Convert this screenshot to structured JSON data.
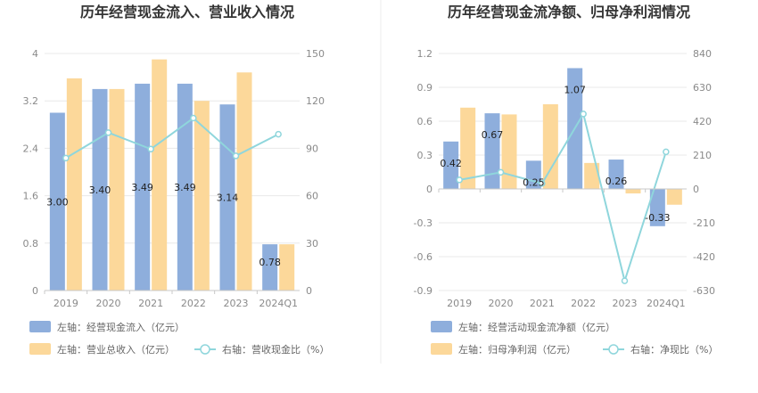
{
  "chart_data": [
    {
      "type": "bar",
      "title": "历年经营现金流入、营业收入情况",
      "categories": [
        "2019",
        "2020",
        "2021",
        "2022",
        "2023",
        "2024Q1"
      ],
      "left_axis": {
        "ticks": [
          "0",
          "0.8",
          "1.6",
          "2.4",
          "3.2",
          "4"
        ],
        "ylim": [
          0,
          4
        ]
      },
      "right_axis": {
        "ticks": [
          "0",
          "30",
          "60",
          "90",
          "120",
          "150"
        ],
        "ylim": [
          0,
          150
        ]
      },
      "series": [
        {
          "name": "左轴：经营现金流入（亿元）",
          "kind": "bar",
          "axis": "left",
          "color": "#8eaedc",
          "values": [
            3.0,
            3.4,
            3.49,
            3.49,
            3.14,
            0.78
          ],
          "labels": [
            "3.00",
            "3.40",
            "3.49",
            "3.49",
            "3.14",
            "0.78"
          ]
        },
        {
          "name": "左轴：营业总收入（亿元）",
          "kind": "bar",
          "axis": "left",
          "color": "#fcd89a",
          "values": [
            3.58,
            3.4,
            3.9,
            3.2,
            3.68,
            0.78
          ]
        },
        {
          "name": "右轴：营收现金比（%）",
          "kind": "line",
          "axis": "right",
          "color": "#8fd6dc",
          "values": [
            83.8,
            99.9,
            89.5,
            109.1,
            85.2,
            98.9
          ]
        }
      ],
      "grid": true,
      "legend_position": "bottom"
    },
    {
      "type": "bar",
      "title": "历年经营现金流净额、归母净利润情况",
      "categories": [
        "2019",
        "2020",
        "2021",
        "2022",
        "2023",
        "2024Q1"
      ],
      "left_axis": {
        "ticks": [
          "-0.9",
          "-0.6",
          "-0.3",
          "0",
          "0.3",
          "0.6",
          "0.9",
          "1.2"
        ],
        "ylim": [
          -0.9,
          1.2
        ]
      },
      "right_axis": {
        "ticks": [
          "-630",
          "-420",
          "-210",
          "0",
          "210",
          "420",
          "630",
          "840"
        ],
        "ylim": [
          -630,
          840
        ]
      },
      "series": [
        {
          "name": "左轴：经营活动现金流净额（亿元）",
          "kind": "bar",
          "axis": "left",
          "color": "#8eaedc",
          "values": [
            0.42,
            0.67,
            0.25,
            1.07,
            0.26,
            -0.33
          ],
          "labels": [
            "0.42",
            "0.67",
            "0.25",
            "1.07",
            "0.26",
            "-0.33"
          ]
        },
        {
          "name": "左轴：归母净利润（亿元）",
          "kind": "bar",
          "axis": "left",
          "color": "#fcd89a",
          "values": [
            0.72,
            0.66,
            0.75,
            0.23,
            -0.04,
            -0.14
          ]
        },
        {
          "name": "右轴：净现比（%）",
          "kind": "line",
          "axis": "right",
          "color": "#8fd6dc",
          "values": [
            56,
            103,
            34,
            465,
            -570,
            230
          ]
        }
      ],
      "grid": true,
      "legend_position": "bottom"
    }
  ]
}
